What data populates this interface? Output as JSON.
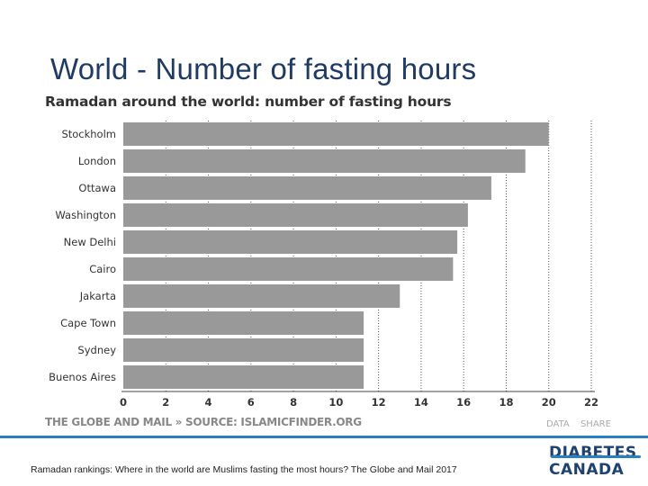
{
  "slide": {
    "title": "World - Number of fasting hours",
    "caption": "Ramadan rankings: Where in the world are Muslims fasting the most hours? The Globe and Mail 2017"
  },
  "chart_actions": {
    "data": "DATA",
    "share": "SHARE"
  },
  "logo": {
    "line1": "DIABETES",
    "line2": "CANADA",
    "color": "#1d4170",
    "accent": "#2a7fc0"
  },
  "chart_data": {
    "type": "bar",
    "orientation": "horizontal",
    "title": "Ramadan around the world: number of fasting hours",
    "source": "THE GLOBE AND MAIL » SOURCE: ISLAMICFINDER.ORG",
    "categories": [
      "Stockholm",
      "London",
      "Ottawa",
      "Washington",
      "New Delhi",
      "Cairo",
      "Jakarta",
      "Cape Town",
      "Sydney",
      "Buenos Aires"
    ],
    "values": [
      20.0,
      18.9,
      17.3,
      16.2,
      15.7,
      15.5,
      13.0,
      11.3,
      11.3,
      11.3
    ],
    "xlim": [
      0,
      22
    ],
    "xticks": [
      0,
      2,
      4,
      6,
      8,
      10,
      12,
      14,
      16,
      18,
      20,
      22
    ],
    "bar_color": "#999999",
    "grid": "dotted vertical",
    "xlabel": "",
    "ylabel": ""
  }
}
